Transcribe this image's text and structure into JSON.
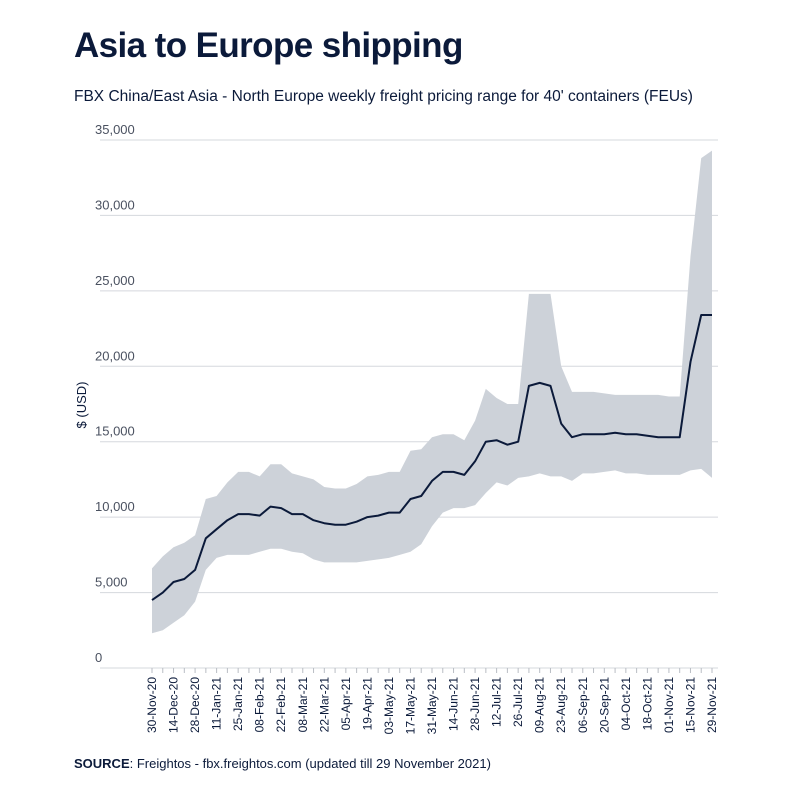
{
  "chart_data": {
    "type": "line",
    "title": "Asia to Europe shipping",
    "subtitle": "FBX China/East Asia - North Europe weekly freight pricing range for 40' containers (FEUs)",
    "ylabel": "$ (USD)",
    "xlabel": "",
    "ylim": [
      0,
      35000
    ],
    "yticks": [
      0,
      5000,
      10000,
      15000,
      20000,
      25000,
      30000,
      35000
    ],
    "ytick_labels": [
      "0",
      "5,000",
      "10,000",
      "15,000",
      "20,000",
      "25,000",
      "30,000",
      "35,000"
    ],
    "grid": "horizontal",
    "colors": {
      "line": "#0b1a3a",
      "band": "#cdd2d9",
      "grid": "#d5d8dd"
    },
    "x": [
      "30-Nov-20",
      "07-Dec-20",
      "14-Dec-20",
      "21-Dec-20",
      "28-Dec-20",
      "04-Jan-21",
      "11-Jan-21",
      "18-Jan-21",
      "25-Jan-21",
      "01-Feb-21",
      "08-Feb-21",
      "15-Feb-21",
      "22-Feb-21",
      "01-Mar-21",
      "08-Mar-21",
      "15-Mar-21",
      "22-Mar-21",
      "29-Mar-21",
      "05-Apr-21",
      "12-Apr-21",
      "19-Apr-21",
      "26-Apr-21",
      "03-May-21",
      "10-May-21",
      "17-May-21",
      "24-May-21",
      "31-May-21",
      "07-Jun-21",
      "14-Jun-21",
      "21-Jun-21",
      "28-Jun-21",
      "05-Jul-21",
      "12-Jul-21",
      "19-Jul-21",
      "26-Jul-21",
      "02-Aug-21",
      "09-Aug-21",
      "16-Aug-21",
      "23-Aug-21",
      "30-Aug-21",
      "06-Sep-21",
      "13-Sep-21",
      "20-Sep-21",
      "27-Sep-21",
      "04-Oct-21",
      "11-Oct-21",
      "18-Oct-21",
      "25-Oct-21",
      "01-Nov-21",
      "08-Nov-21",
      "15-Nov-21",
      "22-Nov-21",
      "29-Nov-21"
    ],
    "x_tick_labels": [
      "30-Nov-20",
      "",
      "14-Dec-20",
      "",
      "28-Dec-20",
      "",
      "11-Jan-21",
      "",
      "25-Jan-21",
      "",
      "08-Feb-21",
      "",
      "22-Feb-21",
      "",
      "08-Mar-21",
      "",
      "22-Mar-21",
      "",
      "05-Apr-21",
      "",
      "19-Apr-21",
      "",
      "03-May-21",
      "",
      "17-May-21",
      "",
      "31-May-21",
      "",
      "14-Jun-21",
      "",
      "28-Jun-21",
      "",
      "12-Jul-21",
      "",
      "26-Jul-21",
      "",
      "09-Aug-21",
      "",
      "23-Aug-21",
      "",
      "06-Sep-21",
      "",
      "20-Sep-21",
      "",
      "04-Oct-21",
      "",
      "18-Oct-21",
      "",
      "01-Nov-21",
      "",
      "15-Nov-21",
      "",
      "29-Nov-21"
    ],
    "series": [
      {
        "role": "average",
        "values": [
          4500,
          5000,
          5700,
          5900,
          6500,
          8600,
          9200,
          9800,
          10200,
          10200,
          10100,
          10700,
          10600,
          10200,
          10200,
          9800,
          9600,
          9500,
          9500,
          9700,
          10000,
          10100,
          10300,
          10300,
          11200,
          11400,
          12400,
          13000,
          13000,
          12800,
          13700,
          15000,
          15100,
          14800,
          15000,
          18700,
          18900,
          18700,
          16200,
          15300,
          15500,
          15500,
          15500,
          15600,
          15500,
          15500,
          15400,
          15300,
          15300,
          15300,
          20300,
          23400,
          23400
        ]
      },
      {
        "role": "range-high",
        "values": [
          6600,
          7400,
          8000,
          8300,
          8800,
          11200,
          11400,
          12300,
          13000,
          13000,
          12700,
          13500,
          13500,
          12900,
          12700,
          12500,
          12000,
          11900,
          11900,
          12200,
          12700,
          12800,
          13000,
          13000,
          14400,
          14500,
          15300,
          15500,
          15500,
          15100,
          16400,
          18500,
          17900,
          17500,
          17500,
          24800,
          24800,
          24800,
          20000,
          18300,
          18300,
          18300,
          18200,
          18100,
          18100,
          18100,
          18100,
          18100,
          18000,
          18000,
          27300,
          33800,
          34300
        ]
      },
      {
        "role": "range-low",
        "values": [
          2300,
          2500,
          3000,
          3500,
          4400,
          6500,
          7300,
          7500,
          7500,
          7500,
          7700,
          7900,
          7900,
          7700,
          7600,
          7200,
          7000,
          7000,
          7000,
          7000,
          7100,
          7200,
          7300,
          7500,
          7700,
          8200,
          9400,
          10300,
          10600,
          10600,
          10800,
          11600,
          12300,
          12100,
          12600,
          12700,
          12900,
          12700,
          12700,
          12400,
          12900,
          12900,
          13000,
          13100,
          12900,
          12900,
          12800,
          12800,
          12800,
          12800,
          13100,
          13200,
          12600
        ]
      }
    ]
  },
  "source": {
    "label": "SOURCE",
    "text": ": Freightos - fbx.freightos.com (updated till 29 November 2021)"
  }
}
